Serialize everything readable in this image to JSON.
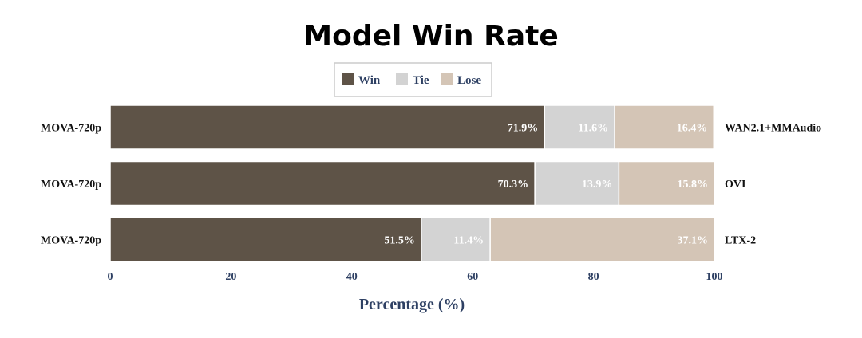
{
  "chart_data": {
    "type": "bar",
    "orientation": "horizontal",
    "stacked": true,
    "title": "Model Win Rate",
    "xlabel": "Percentage (%)",
    "ylabel": "",
    "xlim": [
      0,
      100
    ],
    "x_ticks": [
      "0",
      "20",
      "40",
      "60",
      "80",
      "100"
    ],
    "legend": {
      "placement": "top-center",
      "entries": [
        "Win",
        "Tie",
        "Lose"
      ]
    },
    "grid": false,
    "rows": [
      {
        "left_label": "MOVA-720p",
        "right_label": "WAN2.1+MMAudio"
      },
      {
        "left_label": "MOVA-720p",
        "right_label": "OVI"
      },
      {
        "left_label": "MOVA-720p",
        "right_label": "LTX-2"
      }
    ],
    "series": [
      {
        "name": "Win",
        "color": "#5e5347",
        "values": [
          71.9,
          70.3,
          51.5
        ],
        "labels": [
          "71.9%",
          "70.3%",
          "51.5%"
        ]
      },
      {
        "name": "Tie",
        "color": "#d3d3d3",
        "values": [
          11.6,
          13.9,
          11.4
        ],
        "labels": [
          "11.6%",
          "13.9%",
          "11.4%"
        ]
      },
      {
        "name": "Lose",
        "color": "#d4c5b6",
        "values": [
          16.4,
          15.8,
          37.1
        ],
        "labels": [
          "16.4%",
          "15.8%",
          "37.1%"
        ]
      }
    ],
    "colors": {
      "axis_text": "#2e4063",
      "label_text": "#111111",
      "data_label_text": "#ffffff"
    }
  }
}
